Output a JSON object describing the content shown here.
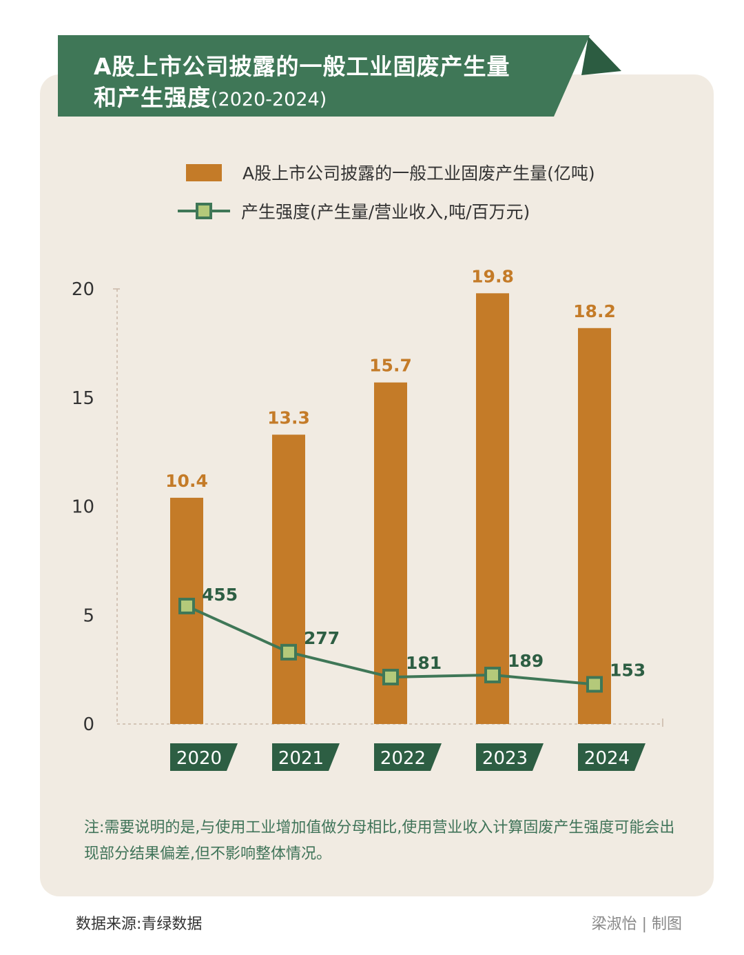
{
  "title": {
    "line1": "A股上市公司披露的一般工业固废产生量",
    "line2": "和产生强度",
    "years": "(2020-2024)"
  },
  "colors": {
    "banner": "#3f7757",
    "banner_dark": "#2c5c41",
    "bar": "#c47b28",
    "bar_label": "#c47b28",
    "line": "#3f7757",
    "marker_fill": "#b4c97a",
    "line_label": "#2d5e43",
    "year_tag": "#2d5e43",
    "card": "#f1ebe2"
  },
  "legend": {
    "bar": "A股上市公司披露的一般工业固废产生量(亿吨)",
    "line": "产生强度(产生量/营业收入,吨/百万元)"
  },
  "chart_data": {
    "type": "bar",
    "categories": [
      "2020",
      "2021",
      "2022",
      "2023",
      "2024"
    ],
    "series": [
      {
        "name": "A股上市公司披露的一般工业固废产生量(亿吨)",
        "type": "bar",
        "values": [
          10.4,
          13.3,
          15.7,
          19.8,
          18.2
        ],
        "labels": [
          "10.4",
          "13.3",
          "15.7",
          "19.8",
          "18.2"
        ]
      },
      {
        "name": "产生强度(产生量/营业收入,吨/百万元)",
        "type": "line",
        "values": [
          455,
          277,
          181,
          189,
          153
        ],
        "labels": [
          "455",
          "277",
          "181",
          "189",
          "153"
        ]
      }
    ],
    "y_ticks": [
      "0",
      "5",
      "10",
      "15",
      "20"
    ],
    "ylim": [
      0,
      20
    ],
    "grid": false,
    "legend_position": "top"
  },
  "note": "注:需要说明的是,与使用工业增加值做分母相比,使用营业收入计算固废产生强度可能会出现部分结果偏差,但不影响整体情况。",
  "source": "数据来源:青绿数据",
  "credit": "梁淑怡 | 制图"
}
